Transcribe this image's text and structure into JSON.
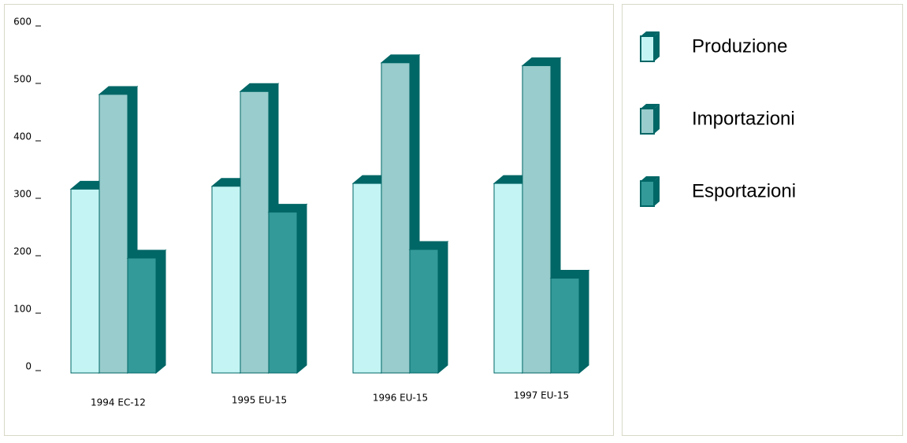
{
  "chart_data": {
    "type": "bar",
    "categories": [
      "1994 EC-12",
      "1995 EU-15",
      "1996 EU-15",
      "1997 EU-15"
    ],
    "series": [
      {
        "name": "Produzione",
        "color": "#c4f4f4",
        "values": [
          320,
          325,
          330,
          330
        ]
      },
      {
        "name": "Importazioni",
        "color": "#99cccc",
        "values": [
          485,
          490,
          540,
          535
        ]
      },
      {
        "name": "Esportazioni",
        "color": "#339999",
        "values": [
          200,
          280,
          215,
          165
        ]
      }
    ],
    "side_color": "#006666",
    "ylim": [
      0,
      600
    ],
    "yticks": [
      0,
      100,
      200,
      300,
      400,
      500,
      600
    ]
  }
}
